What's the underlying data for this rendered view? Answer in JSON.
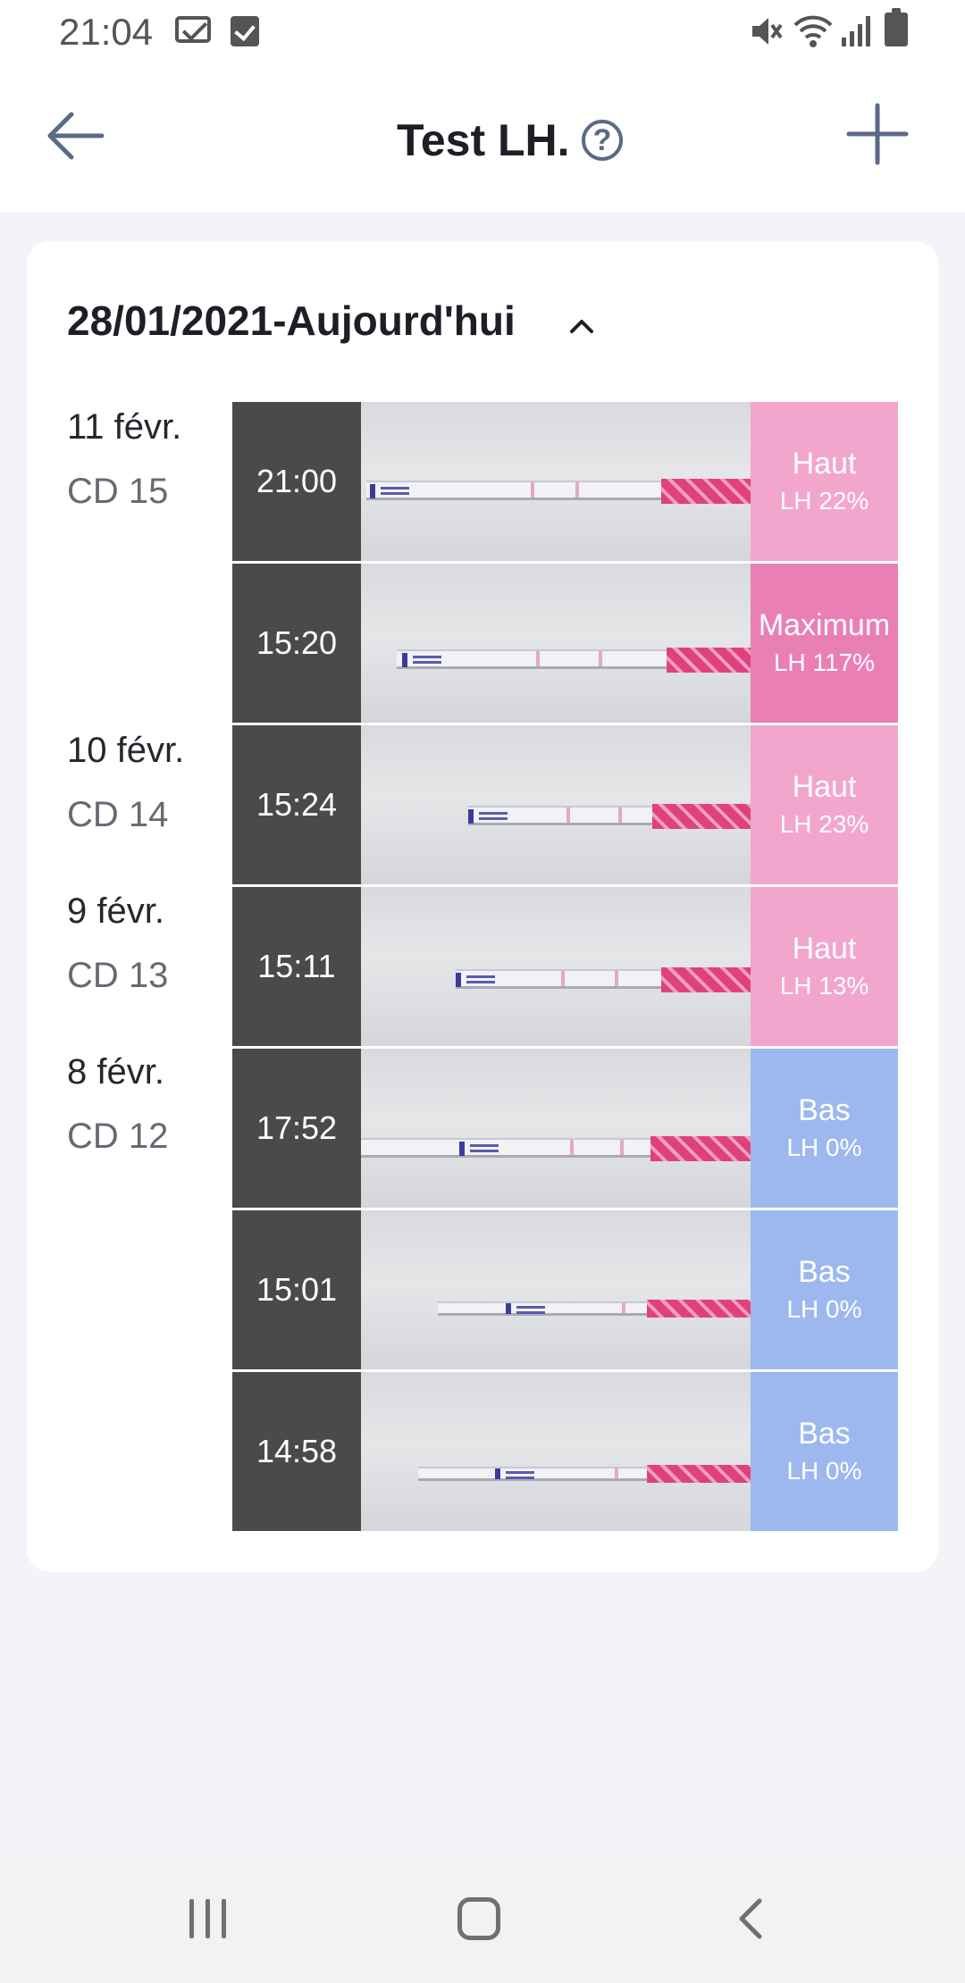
{
  "status": {
    "time": "21:04",
    "icons": [
      "mail-icon",
      "check-icon",
      "mute-icon",
      "wifi-icon",
      "signal-icon",
      "battery-icon"
    ]
  },
  "appbar": {
    "title": "Test LH.",
    "help_symbol": "?",
    "back_icon": "arrow-left-icon",
    "add_icon": "plus-icon"
  },
  "card": {
    "range_label": "28/01/2021-Aujourd'hui",
    "chevron_icon": "chevron-up-icon",
    "days": [
      {
        "date": "11 févr.",
        "cd": "CD 15"
      },
      {
        "date": "10 févr.",
        "cd": "CD 14"
      },
      {
        "date": "9 févr.",
        "cd": "CD 13"
      },
      {
        "date": "8 févr.",
        "cd": "CD 12"
      }
    ],
    "rows": [
      {
        "time": "21:00",
        "level": "Haut",
        "lh": "LH 22%",
        "color": "#f2a6ce"
      },
      {
        "time": "15:20",
        "level": "Maximum",
        "lh": "LH 117%",
        "color": "#ea7fb6"
      },
      {
        "time": "15:24",
        "level": "Haut",
        "lh": "LH 23%",
        "color": "#f2a6ce"
      },
      {
        "time": "15:11",
        "level": "Haut",
        "lh": "LH 13%",
        "color": "#f2a6ce"
      },
      {
        "time": "17:52",
        "level": "Bas",
        "lh": "LH 0%",
        "color": "#9db8ef"
      },
      {
        "time": "15:01",
        "level": "Bas",
        "lh": "LH 0%",
        "color": "#9db8ef"
      },
      {
        "time": "14:58",
        "level": "Bas",
        "lh": "LH 0%",
        "color": "#9db8ef"
      }
    ]
  },
  "navbar": {
    "icons": [
      "recent-apps-icon",
      "home-icon",
      "back-icon"
    ]
  }
}
